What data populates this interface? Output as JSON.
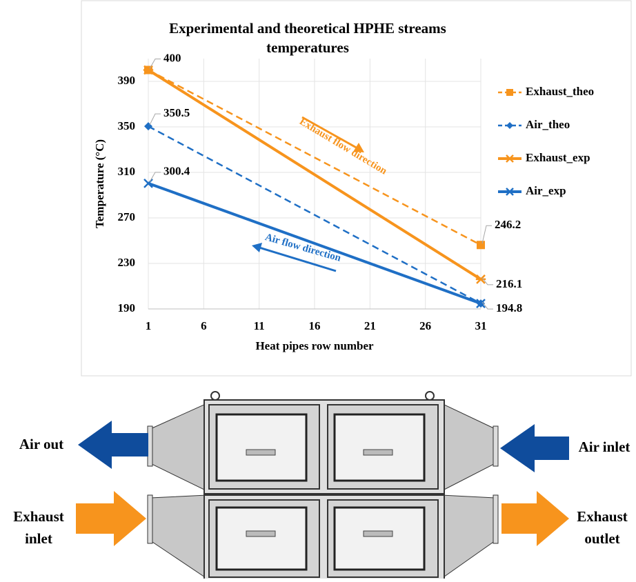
{
  "chart_data": {
    "type": "line",
    "title": [
      "Experimental and theoretical HPHE streams",
      "temperatures"
    ],
    "x_label": "Heat pipes row number",
    "y_label": "Temperature (°C)",
    "x": [
      1,
      31
    ],
    "xlim": [
      1,
      31
    ],
    "xticks": [
      1,
      6,
      11,
      16,
      21,
      26,
      31
    ],
    "ylim": [
      190,
      410
    ],
    "yticks": [
      190,
      230,
      270,
      310,
      350,
      390
    ],
    "grid": true,
    "legend": "right",
    "series": [
      {
        "name": "Exhaust_theo",
        "color": "#f7941d",
        "dash": true,
        "marker": "square",
        "values": [
          400,
          246.2
        ]
      },
      {
        "name": "Air_theo",
        "color": "#1f6fc5",
        "dash": true,
        "marker": "diamond",
        "values": [
          350.5,
          194.8
        ]
      },
      {
        "name": "Exhaust_exp",
        "color": "#f7941d",
        "dash": false,
        "marker": "star",
        "values": [
          400,
          216.1
        ]
      },
      {
        "name": "Air_exp",
        "color": "#1f6fc5",
        "dash": false,
        "marker": "x",
        "values": [
          300.4,
          194.8
        ]
      }
    ],
    "annotations": [
      "Exhaust flow direction",
      "Air flow direction"
    ]
  },
  "diagram": {
    "air_out": "Air out",
    "air_inlet": "Air inlet",
    "exhaust_inlet": [
      "Exhaust",
      "inlet"
    ],
    "exhaust_outlet": [
      "Exhaust",
      "outlet"
    ]
  }
}
